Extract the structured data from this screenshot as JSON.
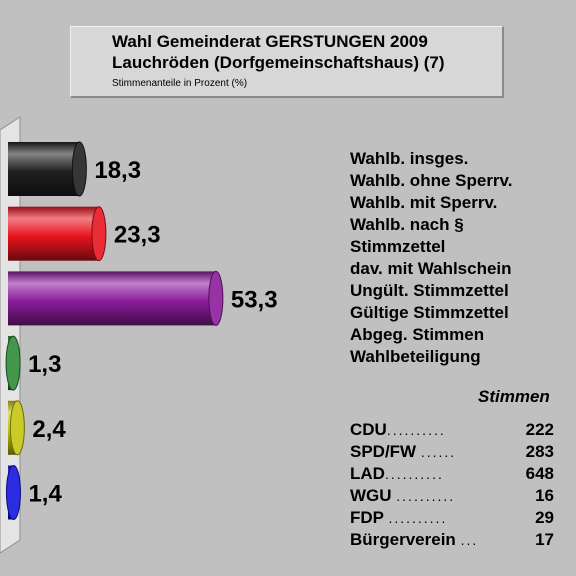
{
  "header": {
    "line1": "Wahl Gemeinderat GERSTUNGEN 2009",
    "line2": "Lauchröden (Dorfgemeinschaftshaus) (7)",
    "subtitle": "Stimmenanteile in Prozent (%)"
  },
  "chart_data": {
    "type": "bar",
    "orientation": "horizontal",
    "categories": [
      "CDU",
      "SPD/FW",
      "LAD",
      "WGU",
      "FDP",
      "Bürgerverein"
    ],
    "values": [
      18.3,
      23.3,
      53.3,
      1.3,
      2.4,
      1.4
    ],
    "value_labels": [
      "18,3",
      "23,3",
      "53,3",
      "1,3",
      "2,4",
      "1,4"
    ],
    "colors": [
      "#202020",
      "#e8141e",
      "#8c1c9c",
      "#2e8a36",
      "#c4c410",
      "#1414e0"
    ],
    "title": "Wahl Gemeinderat GERSTUNGEN 2009",
    "xlim": [
      0,
      55
    ]
  },
  "info": {
    "rows": [
      "Wahlb. insges.",
      "Wahlb. ohne Sperrv.",
      "Wahlb. mit Sperrv.",
      "Wahlb. nach §",
      "Stimmzettel",
      "dav. mit Wahlschein",
      "Ungült. Stimmzettel",
      "Gültige Stimmzettel",
      "Abgeg. Stimmen",
      "Wahlbeteiligung"
    ]
  },
  "votes": {
    "header": "Stimmen",
    "rows": [
      {
        "party": "CDU",
        "dots": "..........",
        "value": "222"
      },
      {
        "party": "SPD/FW",
        "dots": "......",
        "value": "283"
      },
      {
        "party": "LAD",
        "dots": "..........",
        "value": "648"
      },
      {
        "party": "WGU",
        "dots": "..........",
        "value": "16"
      },
      {
        "party": "FDP",
        "dots": "..........",
        "value": "29"
      },
      {
        "party": "Bürgerverein",
        "dots": "...",
        "value": "17"
      }
    ]
  }
}
